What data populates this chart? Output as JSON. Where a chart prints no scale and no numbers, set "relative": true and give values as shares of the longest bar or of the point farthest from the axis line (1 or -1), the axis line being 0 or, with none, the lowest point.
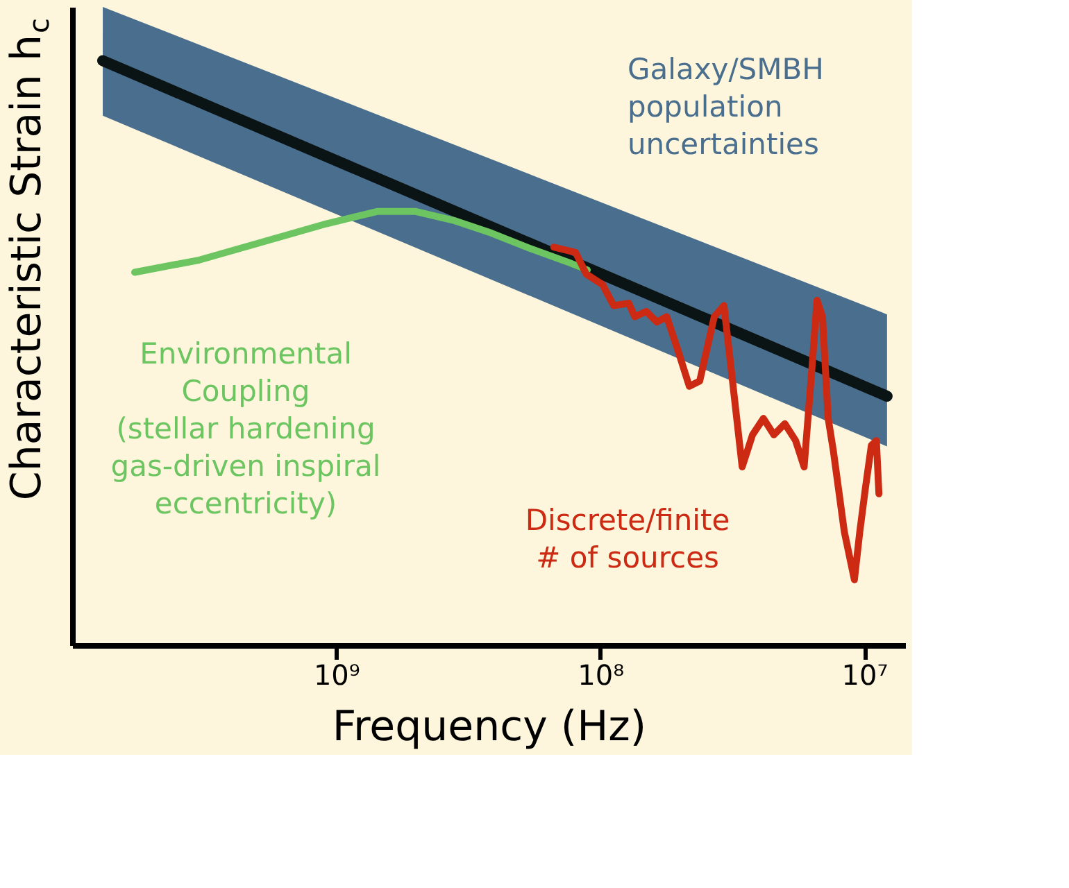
{
  "chart_data": {
    "type": "line",
    "relative": true,
    "log": "x",
    "xlabel": "Frequency (Hz)",
    "ylabel": "Characteristic Strain h$_{c}$",
    "xlim": [
      10000000000,
      7000000
    ],
    "xticks": [
      {
        "value": 1000000000,
        "label": "10⁹"
      },
      {
        "value": 100000000,
        "label": "10⁸"
      },
      {
        "value": 10000000,
        "label": "10⁷"
      }
    ],
    "tick_labels": "x",
    "annotations": [
      "Galaxy/SMBH\npopulation\nuncertainties"
    ],
    "series": [
      {
        "color": "#0b1414",
        "x": [
          7660000000,
          8200000
        ],
        "values": [
          1.0,
          0.426
        ],
        "lower": [
          0.906,
          0.34
        ],
        "upper": [
          1.092,
          0.566
        ]
      },
      {
        "name": "Environmental\nCoupling\n(stellar hardening\ngas-driven inspiral\neccentricity)",
        "color": "#6cc560",
        "x": [
          5800000000,
          3300000000,
          1900000000,
          1090000000,
          700000000,
          500000000,
          360000000,
          258000000,
          185000000,
          132000000,
          112000000
        ],
        "values": [
          0.638,
          0.659,
          0.69,
          0.721,
          0.742,
          0.742,
          0.727,
          0.705,
          0.679,
          0.655,
          0.642
        ]
      },
      {
        "name": "Discrete/finite\n# of sources",
        "color": "#cc2a12",
        "x": [
          150000000,
          124000000,
          113000000,
          98000000,
          89000000,
          78000000,
          74000000,
          67000000,
          61000000,
          56000000,
          51000000,
          46000000,
          42000000,
          37000000,
          34000000,
          31900000,
          29000000,
          26500000,
          24100000,
          22000000,
          20000000,
          18200000,
          16900000,
          15800000,
          15100000,
          14400000,
          13700000,
          13100000,
          11900000,
          10900000,
          10400000,
          9900000,
          9400000,
          9000000,
          8800000
        ],
        "values": [
          0.681,
          0.672,
          0.635,
          0.617,
          0.581,
          0.585,
          0.562,
          0.571,
          0.553,
          0.562,
          0.507,
          0.443,
          0.452,
          0.562,
          0.581,
          0.471,
          0.305,
          0.36,
          0.388,
          0.36,
          0.379,
          0.35,
          0.305,
          0.471,
          0.59,
          0.562,
          0.388,
          0.333,
          0.194,
          0.112,
          0.194,
          0.269,
          0.342,
          0.35,
          0.259
        ]
      }
    ]
  }
}
